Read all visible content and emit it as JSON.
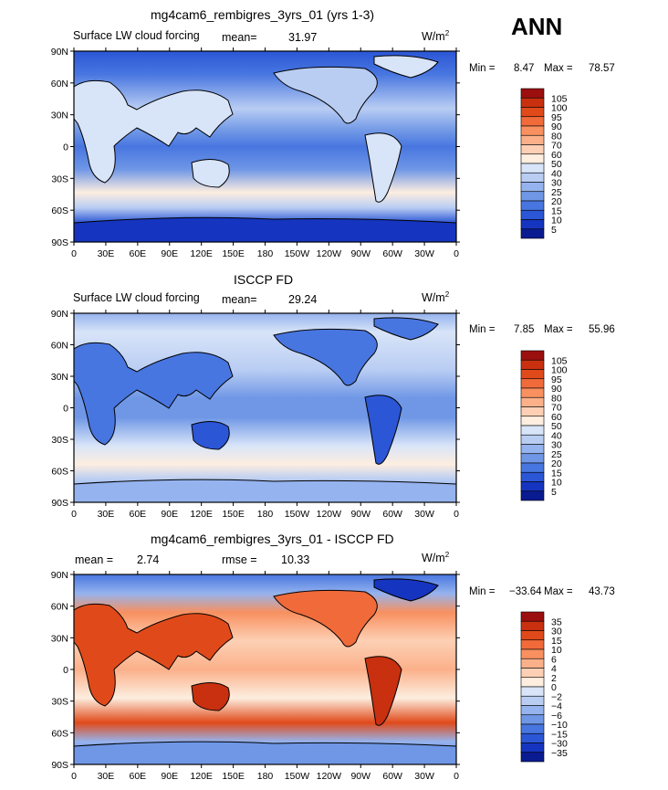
{
  "season": "ANN",
  "units": "W/m2",
  "panels": [
    {
      "title": "mg4cam6_rembigres_3yrs_01 (yrs 1-3)",
      "variable": "Surface LW cloud forcing",
      "stat1_label": "mean=",
      "stat1_value": "31.97",
      "stat2_label": "",
      "stat2_value": "",
      "min_label": "Min =",
      "min": "8.47",
      "max_label": "Max =",
      "max": "78.57",
      "levels": [
        "105",
        "100",
        "95",
        "90",
        "80",
        "70",
        "60",
        "50",
        "40",
        "30",
        "25",
        "20",
        "15",
        "10",
        "5"
      ],
      "colors": [
        "#9c0f0f",
        "#c8300f",
        "#e04a1a",
        "#f06a3a",
        "#f8905f",
        "#fbb08a",
        "#fdd0b5",
        "#fdeee0",
        "#d8e4f8",
        "#b9cdf3",
        "#95b3ee",
        "#6f97e6",
        "#4876e0",
        "#2b56d5",
        "#1535c0",
        "#0a1a90"
      ]
    },
    {
      "title": "ISCCP FD",
      "variable": "Surface LW cloud forcing",
      "stat1_label": "mean=",
      "stat1_value": "29.24",
      "stat2_label": "",
      "stat2_value": "",
      "min_label": "Min =",
      "min": "7.85",
      "max_label": "Max =",
      "max": "55.96",
      "levels": [
        "105",
        "100",
        "95",
        "90",
        "80",
        "70",
        "60",
        "50",
        "40",
        "30",
        "25",
        "20",
        "15",
        "10",
        "5"
      ],
      "colors": [
        "#9c0f0f",
        "#c8300f",
        "#e04a1a",
        "#f06a3a",
        "#f8905f",
        "#fbb08a",
        "#fdd0b5",
        "#fdeee0",
        "#d8e4f8",
        "#b9cdf3",
        "#95b3ee",
        "#6f97e6",
        "#4876e0",
        "#2b56d5",
        "#1535c0",
        "#0a1a90"
      ]
    },
    {
      "title": "mg4cam6_rembigres_3yrs_01 - ISCCP FD",
      "variable": "",
      "stat1_label": "mean =",
      "stat1_value": "2.74",
      "stat2_label": "rmse =",
      "stat2_value": "10.33",
      "min_label": "Min =",
      "min": "−33.64",
      "max_label": "Max =",
      "max": "43.73",
      "levels": [
        "35",
        "30",
        "15",
        "10",
        "6",
        "4",
        "2",
        "0",
        "−2",
        "−4",
        "−6",
        "−10",
        "−15",
        "−30",
        "−35"
      ],
      "colors": [
        "#9c0f0f",
        "#c8300f",
        "#e04a1a",
        "#f06a3a",
        "#f8905f",
        "#fbb08a",
        "#fdd0b5",
        "#fdeee0",
        "#d8e4f8",
        "#b9cdf3",
        "#95b3ee",
        "#6f97e6",
        "#4876e0",
        "#2b56d5",
        "#1535c0",
        "#0a1a90"
      ]
    }
  ],
  "lat_labels": [
    "90N",
    "60N",
    "30N",
    "0",
    "30S",
    "60S",
    "90S"
  ],
  "lon_labels": [
    "0",
    "30E",
    "60E",
    "90E",
    "120E",
    "150E",
    "180",
    "150W",
    "120W",
    "90W",
    "60W",
    "30W",
    "0"
  ]
}
